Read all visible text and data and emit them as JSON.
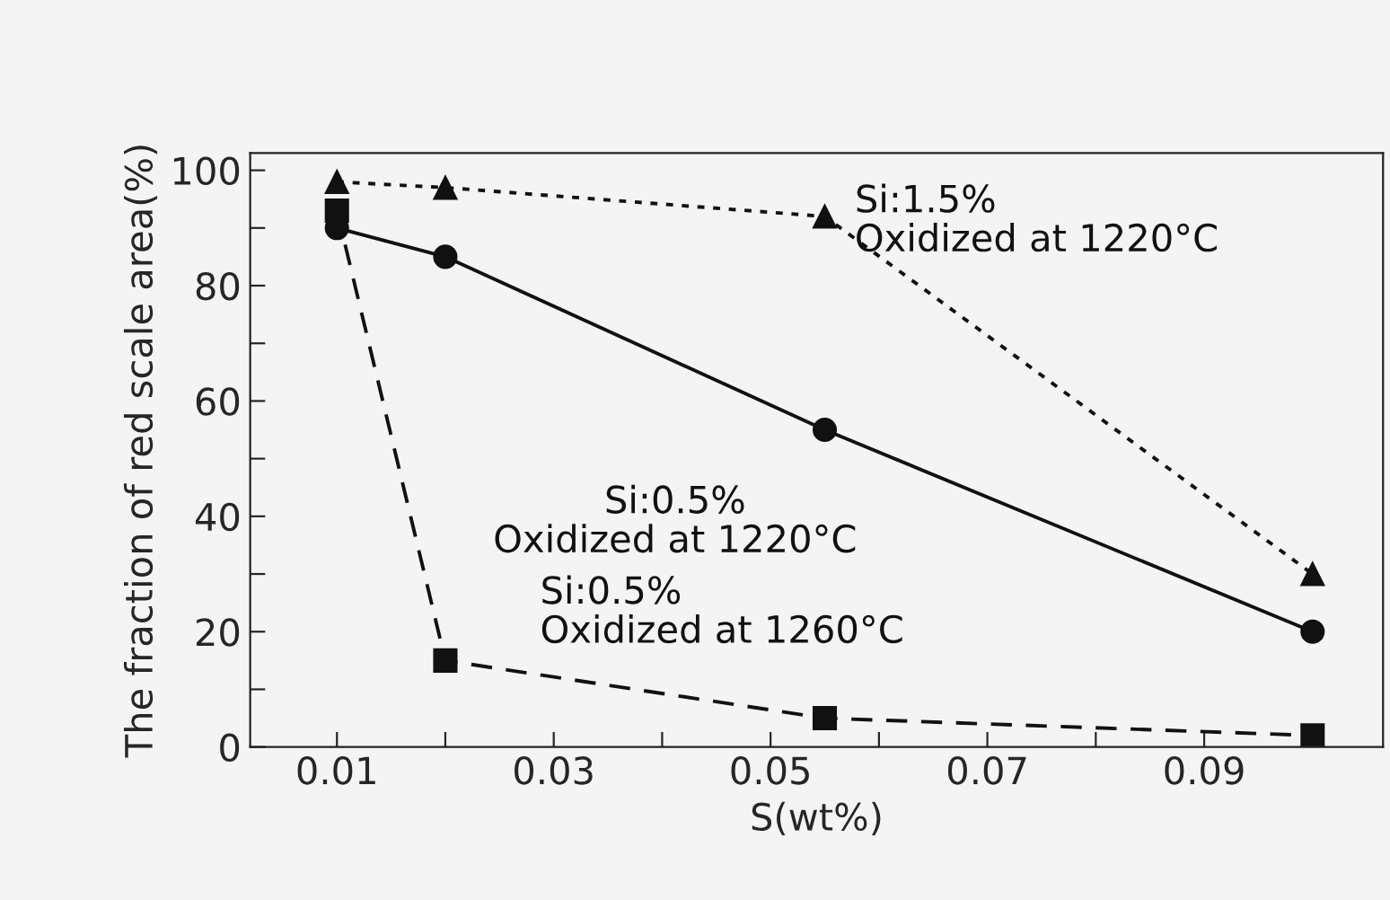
{
  "chart_data": {
    "type": "line",
    "xlabel": "S(wt%)",
    "ylabel": "The fraction of red scale area(%)",
    "xlim": [
      0.002,
      0.1065
    ],
    "ylim": [
      0,
      103
    ],
    "xticks": [
      0.01,
      {
        "value": 0.02,
        "label": null
      },
      0.03,
      {
        "value": 0.04,
        "label": null
      },
      0.05,
      {
        "value": 0.06,
        "label": null
      },
      0.07,
      {
        "value": 0.08,
        "label": null
      },
      0.09
    ],
    "yticks": [
      0,
      {
        "value": 10,
        "label": null
      },
      20,
      {
        "value": 30,
        "label": null
      },
      40,
      {
        "value": 50,
        "label": null
      },
      60,
      {
        "value": 70,
        "label": null
      },
      80,
      {
        "value": 90,
        "label": null
      },
      100
    ],
    "grid": false,
    "legend": false,
    "series": [
      {
        "name": "Si:1.5%\nOxidized at 1220°C",
        "color": "#111111",
        "marker": "triangle",
        "line_style": "dotted",
        "x": [
          0.01,
          0.02,
          0.055,
          0.1
        ],
        "values": [
          98,
          97,
          92,
          30
        ]
      },
      {
        "name": "Si:0.5%\nOxidized at 1220°C",
        "color": "#111111",
        "marker": "circle",
        "line_style": "solid",
        "x": [
          0.01,
          0.02,
          0.055,
          0.1
        ],
        "values": [
          90,
          85,
          55,
          20
        ]
      },
      {
        "name": "Si:0.5%\nOxidized at 1260°C",
        "color": "#111111",
        "marker": "square",
        "line_style": "dashed",
        "x": [
          0.01,
          0.02,
          0.055,
          0.1
        ],
        "values": [
          93,
          15,
          5,
          2
        ]
      }
    ]
  }
}
